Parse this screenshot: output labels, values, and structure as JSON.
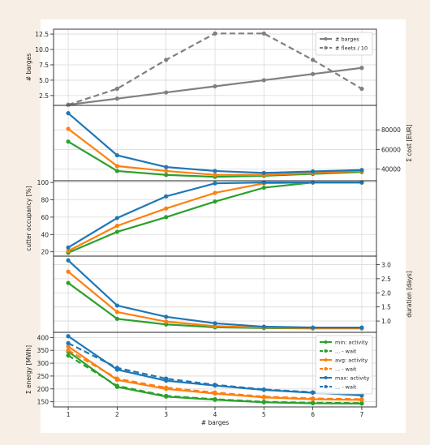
{
  "chart_data": [
    {
      "type": "line",
      "ylabel": "# barges",
      "ylim": [
        0.9,
        13.3
      ],
      "yticks": [
        2.5,
        5.0,
        7.5,
        10.0,
        12.5
      ],
      "ytick_labels": [
        "2.5",
        "5.0",
        "7.5",
        "10.0",
        "12.5"
      ],
      "y_axis_side": "left",
      "grid": true,
      "legend": "top-right",
      "x": [
        1,
        2,
        3,
        4,
        5,
        6,
        7
      ],
      "series": [
        {
          "name": "# barges",
          "values": [
            1,
            2,
            3,
            4,
            5,
            6,
            7
          ],
          "color": "#808080",
          "dash": "solid"
        },
        {
          "name": "# fleets / 10",
          "values": [
            1.0,
            3.6,
            8.3,
            12.6,
            12.6,
            8.3,
            3.6
          ],
          "color": "#808080",
          "dash": "dashed"
        }
      ]
    },
    {
      "type": "line",
      "ylabel": "Σ cost [EUR]",
      "ylim": [
        28000,
        105000
      ],
      "yticks": [
        40000,
        60000,
        80000
      ],
      "ytick_labels": [
        "40000",
        "60000",
        "80000"
      ],
      "y_axis_side": "right",
      "grid": true,
      "x": [
        1,
        2,
        3,
        4,
        5,
        6,
        7
      ],
      "series": [
        {
          "values": [
            68000,
            38000,
            34000,
            32000,
            33000,
            35000,
            37000
          ],
          "color": "#2ca02c",
          "dash": "solid"
        },
        {
          "values": [
            81000,
            43000,
            38000,
            34000,
            34000,
            36000,
            38000
          ],
          "color": "#ff7f0e",
          "dash": "solid"
        },
        {
          "values": [
            97000,
            54000,
            42000,
            38000,
            36000,
            37500,
            39000
          ],
          "color": "#1f77b4",
          "dash": "solid"
        }
      ]
    },
    {
      "type": "line",
      "ylabel": "cutter occupancy [%]",
      "ylim": [
        15,
        102
      ],
      "yticks": [
        20,
        40,
        60,
        80,
        100
      ],
      "ytick_labels": [
        "20",
        "40",
        "60",
        "80",
        "100"
      ],
      "y_axis_side": "left",
      "grid": true,
      "x": [
        1,
        2,
        3,
        4,
        5,
        6,
        7
      ],
      "series": [
        {
          "values": [
            19,
            43,
            60,
            78,
            94,
            100,
            100
          ],
          "color": "#2ca02c",
          "dash": "solid"
        },
        {
          "values": [
            21,
            50,
            70,
            88,
            99,
            100,
            100
          ],
          "color": "#ff7f0e",
          "dash": "solid"
        },
        {
          "values": [
            25,
            59,
            84,
            99,
            100,
            100,
            100
          ],
          "color": "#1f77b4",
          "dash": "solid"
        }
      ]
    },
    {
      "type": "line",
      "ylabel": "duration [days]",
      "ylim": [
        0.6,
        3.3
      ],
      "yticks": [
        1.0,
        1.5,
        2.0,
        2.5,
        3.0
      ],
      "ytick_labels": [
        "1.0",
        "1.5",
        "2.0",
        "2.5",
        "3.0"
      ],
      "y_axis_side": "right",
      "grid": true,
      "x": [
        1,
        2,
        3,
        4,
        5,
        6,
        7
      ],
      "series": [
        {
          "values": [
            2.35,
            1.08,
            0.88,
            0.78,
            0.75,
            0.74,
            0.74
          ],
          "color": "#2ca02c",
          "dash": "solid"
        },
        {
          "values": [
            2.75,
            1.32,
            0.98,
            0.82,
            0.77,
            0.75,
            0.75
          ],
          "color": "#ff7f0e",
          "dash": "solid"
        },
        {
          "values": [
            3.15,
            1.55,
            1.15,
            0.92,
            0.8,
            0.77,
            0.77
          ],
          "color": "#1f77b4",
          "dash": "solid"
        }
      ]
    },
    {
      "type": "line",
      "ylabel": "Σ energy [MWh]",
      "xlabel": "# barges",
      "ylim": [
        130,
        420
      ],
      "yticks": [
        150,
        200,
        250,
        300,
        350,
        400
      ],
      "ytick_labels": [
        "150",
        "200",
        "250",
        "300",
        "350",
        "400"
      ],
      "xticks": [
        1,
        2,
        3,
        4,
        5,
        6,
        7
      ],
      "xtick_labels": [
        "1",
        "2",
        "3",
        "4",
        "5",
        "6",
        "7"
      ],
      "y_axis_side": "left",
      "grid": true,
      "legend": "top-right",
      "x": [
        1,
        2,
        3,
        4,
        5,
        6,
        7
      ],
      "series": [
        {
          "name": "min: activity",
          "values": [
            345,
            208,
            170,
            158,
            148,
            144,
            143
          ],
          "color": "#2ca02c",
          "dash": "solid"
        },
        {
          "name": "... - wait",
          "values": [
            330,
            212,
            173,
            160,
            150,
            146,
            145
          ],
          "color": "#2ca02c",
          "dash": "dashed"
        },
        {
          "name": "avg: activity",
          "values": [
            365,
            235,
            200,
            182,
            167,
            160,
            157
          ],
          "color": "#ff7f0e",
          "dash": "solid"
        },
        {
          "name": "... - wait",
          "values": [
            350,
            240,
            205,
            186,
            170,
            163,
            160
          ],
          "color": "#ff7f0e",
          "dash": "dashed"
        },
        {
          "name": "max: activity",
          "values": [
            405,
            275,
            232,
            213,
            196,
            185,
            175
          ],
          "color": "#1f77b4",
          "dash": "solid"
        },
        {
          "name": "... - wait",
          "values": [
            378,
            282,
            240,
            216,
            198,
            187,
            177
          ],
          "color": "#1f77b4",
          "dash": "dashed"
        }
      ]
    }
  ]
}
